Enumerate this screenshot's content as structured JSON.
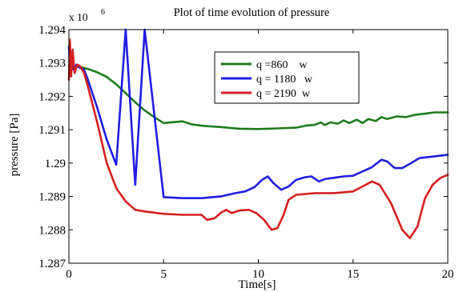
{
  "chart_data": {
    "type": "line",
    "title": "Plot of time evolution of pressure",
    "xlabel": "Time[s]",
    "ylabel": "pressure [Pa]",
    "y_multiplier_base": "x 10",
    "y_multiplier_exp": "6",
    "xlim": [
      0,
      20
    ],
    "ylim": [
      1.287,
      1.294
    ],
    "xticks": [
      0,
      5,
      10,
      15,
      20
    ],
    "xtick_labels": [
      "0",
      "5",
      "10",
      "15",
      "20"
    ],
    "yticks": [
      1.287,
      1.288,
      1.289,
      1.29,
      1.291,
      1.292,
      1.293,
      1.294
    ],
    "ytick_labels": [
      "1.287",
      "1.288",
      "1.289",
      "1.29",
      "1.291",
      "1.292",
      "1.293",
      "1.294"
    ],
    "grid": false,
    "legend_position": "top-right",
    "series": [
      {
        "name": "q =860    w",
        "color": "#1f7a1f",
        "points": [
          [
            0.0,
            1.2929
          ],
          [
            0.1,
            1.2931
          ],
          [
            0.3,
            1.2929
          ],
          [
            0.6,
            1.29288
          ],
          [
            1.0,
            1.29282
          ],
          [
            1.5,
            1.29272
          ],
          [
            2.0,
            1.29258
          ],
          [
            2.5,
            1.29236
          ],
          [
            3.0,
            1.2921
          ],
          [
            3.5,
            1.29182
          ],
          [
            4.0,
            1.29158
          ],
          [
            4.5,
            1.29138
          ],
          [
            5.0,
            1.2912
          ],
          [
            6.0,
            1.29125
          ],
          [
            6.5,
            1.29116
          ],
          [
            7.0,
            1.29112
          ],
          [
            7.5,
            1.2911
          ],
          [
            8.0,
            1.29108
          ],
          [
            9.0,
            1.29103
          ],
          [
            10.0,
            1.29102
          ],
          [
            11.0,
            1.29104
          ],
          [
            12.0,
            1.29106
          ],
          [
            12.5,
            1.29112
          ],
          [
            13.0,
            1.29115
          ],
          [
            13.3,
            1.29122
          ],
          [
            13.5,
            1.29114
          ],
          [
            13.8,
            1.29122
          ],
          [
            14.2,
            1.29118
          ],
          [
            14.5,
            1.29128
          ],
          [
            14.8,
            1.2912
          ],
          [
            15.2,
            1.2913
          ],
          [
            15.5,
            1.2912
          ],
          [
            15.8,
            1.29132
          ],
          [
            16.2,
            1.29126
          ],
          [
            16.5,
            1.29138
          ],
          [
            16.8,
            1.29132
          ],
          [
            17.3,
            1.2914
          ],
          [
            17.8,
            1.29138
          ],
          [
            18.3,
            1.29145
          ],
          [
            18.8,
            1.29148
          ],
          [
            19.3,
            1.29152
          ],
          [
            20.0,
            1.29152
          ]
        ]
      },
      {
        "name": "q = 1180   w",
        "color": "#1f1fe0",
        "points": [
          [
            0.0,
            1.2935
          ],
          [
            0.08,
            1.2926
          ],
          [
            0.15,
            1.2933
          ],
          [
            0.25,
            1.2928
          ],
          [
            0.4,
            1.29295
          ],
          [
            0.6,
            1.29285
          ],
          [
            0.8,
            1.2928
          ],
          [
            1.0,
            1.2925
          ],
          [
            1.5,
            1.29165
          ],
          [
            2.0,
            1.2907
          ],
          [
            2.5,
            1.28995
          ],
          [
            3.0,
            1.2995
          ],
          [
            3.5,
            1.28935
          ],
          [
            4.0,
            1.2991
          ],
          [
            5.0,
            1.28898
          ],
          [
            6.0,
            1.28895
          ],
          [
            7.0,
            1.28895
          ],
          [
            8.0,
            1.289
          ],
          [
            8.8,
            1.2891
          ],
          [
            9.3,
            1.28915
          ],
          [
            9.8,
            1.28928
          ],
          [
            10.2,
            1.2895
          ],
          [
            10.5,
            1.2896
          ],
          [
            10.8,
            1.2894
          ],
          [
            11.2,
            1.2892
          ],
          [
            11.6,
            1.2893
          ],
          [
            12.0,
            1.2895
          ],
          [
            12.5,
            1.28958
          ],
          [
            12.8,
            1.2896
          ],
          [
            13.2,
            1.28945
          ],
          [
            13.5,
            1.28952
          ],
          [
            14.0,
            1.28956
          ],
          [
            14.5,
            1.2896
          ],
          [
            15.0,
            1.28962
          ],
          [
            15.5,
            1.28975
          ],
          [
            16.0,
            1.28988
          ],
          [
            16.5,
            1.2901
          ],
          [
            16.8,
            1.29005
          ],
          [
            17.2,
            1.28985
          ],
          [
            17.6,
            1.28985
          ],
          [
            18.0,
            1.28998
          ],
          [
            18.5,
            1.29015
          ],
          [
            19.0,
            1.29018
          ],
          [
            20.0,
            1.29025
          ]
        ]
      },
      {
        "name": "q = 2190  w",
        "color": "#d42020",
        "points": [
          [
            0.0,
            1.2925
          ],
          [
            0.05,
            1.2937
          ],
          [
            0.12,
            1.2926
          ],
          [
            0.2,
            1.2934
          ],
          [
            0.3,
            1.2927
          ],
          [
            0.45,
            1.29295
          ],
          [
            0.6,
            1.2929
          ],
          [
            0.8,
            1.2927
          ],
          [
            1.0,
            1.2923
          ],
          [
            1.5,
            1.2912
          ],
          [
            2.0,
            1.29
          ],
          [
            2.5,
            1.28925
          ],
          [
            3.0,
            1.28885
          ],
          [
            3.5,
            1.2886
          ],
          [
            4.0,
            1.28855
          ],
          [
            5.0,
            1.28848
          ],
          [
            6.0,
            1.28845
          ],
          [
            7.0,
            1.28845
          ],
          [
            7.3,
            1.2883
          ],
          [
            7.7,
            1.28835
          ],
          [
            8.0,
            1.2885
          ],
          [
            8.3,
            1.2886
          ],
          [
            8.6,
            1.2885
          ],
          [
            9.0,
            1.28858
          ],
          [
            9.5,
            1.2886
          ],
          [
            9.9,
            1.2885
          ],
          [
            10.3,
            1.2883
          ],
          [
            10.7,
            1.288
          ],
          [
            11.0,
            1.28805
          ],
          [
            11.3,
            1.2884
          ],
          [
            11.6,
            1.2889
          ],
          [
            12.0,
            1.28905
          ],
          [
            13.0,
            1.2891
          ],
          [
            14.0,
            1.2891
          ],
          [
            15.0,
            1.28915
          ],
          [
            15.5,
            1.2893
          ],
          [
            16.0,
            1.28945
          ],
          [
            16.4,
            1.28935
          ],
          [
            17.0,
            1.2888
          ],
          [
            17.6,
            1.288
          ],
          [
            18.0,
            1.28775
          ],
          [
            18.4,
            1.2881
          ],
          [
            18.8,
            1.28895
          ],
          [
            19.2,
            1.28935
          ],
          [
            19.6,
            1.28955
          ],
          [
            20.0,
            1.28965
          ]
        ]
      }
    ]
  }
}
